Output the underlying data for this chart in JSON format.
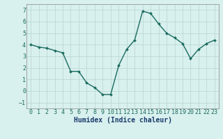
{
  "x": [
    0,
    1,
    2,
    3,
    4,
    5,
    6,
    7,
    8,
    9,
    10,
    11,
    12,
    13,
    14,
    15,
    16,
    17,
    18,
    19,
    20,
    21,
    22,
    23
  ],
  "y": [
    4.0,
    3.8,
    3.7,
    3.5,
    3.3,
    1.7,
    1.7,
    0.7,
    0.3,
    -0.3,
    -0.3,
    2.2,
    3.6,
    4.4,
    6.9,
    6.7,
    5.8,
    5.0,
    4.6,
    4.1,
    2.8,
    3.6,
    4.1,
    4.4
  ],
  "line_color": "#1a6b5e",
  "marker": "D",
  "marker_size": 2,
  "linewidth": 1.0,
  "bg_color": "#d8f0ee",
  "grid_color": "#b8d4d0",
  "xlabel": "Humidex (Indice chaleur)",
  "xlabel_color": "#1a3a6b",
  "xlabel_fontsize": 7,
  "xlim": [
    -0.5,
    23.5
  ],
  "ylim": [
    -1.5,
    7.5
  ],
  "yticks": [
    -1,
    0,
    1,
    2,
    3,
    4,
    5,
    6,
    7
  ],
  "xticks": [
    0,
    1,
    2,
    3,
    4,
    5,
    6,
    7,
    8,
    9,
    10,
    11,
    12,
    13,
    14,
    15,
    16,
    17,
    18,
    19,
    20,
    21,
    22,
    23
  ],
  "tick_fontsize": 6,
  "tick_color": "#1a6b5e"
}
